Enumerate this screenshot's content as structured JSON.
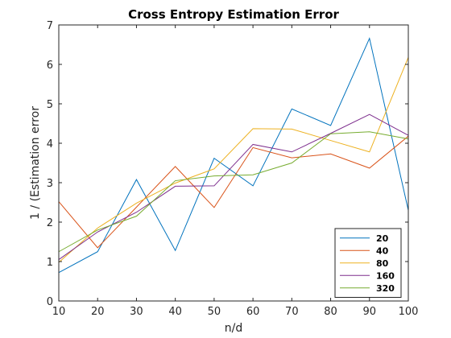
{
  "chart_data": {
    "type": "line",
    "title": "Cross Entropy Estimation Error",
    "xlabel": "n/d",
    "ylabel": "1 / (Estimation error",
    "x": [
      10,
      20,
      30,
      40,
      50,
      60,
      70,
      80,
      90,
      100
    ],
    "xlim": [
      10,
      100
    ],
    "ylim": [
      0,
      7
    ],
    "xticks": [
      "10",
      "20",
      "30",
      "40",
      "50",
      "60",
      "70",
      "80",
      "90",
      "100"
    ],
    "yticks": [
      "0",
      "1",
      "2",
      "3",
      "4",
      "5",
      "6",
      "7"
    ],
    "grid": false,
    "legend_position": "bottom-right",
    "series": [
      {
        "name": "20",
        "color": "#0072BD",
        "values": [
          0.72,
          1.25,
          3.08,
          1.28,
          3.62,
          2.92,
          4.87,
          4.45,
          6.66,
          2.3
        ]
      },
      {
        "name": "40",
        "color": "#D95319",
        "values": [
          2.52,
          1.35,
          2.38,
          3.41,
          2.37,
          3.89,
          3.63,
          3.73,
          3.37,
          4.18
        ]
      },
      {
        "name": "80",
        "color": "#EDB120",
        "values": [
          0.98,
          1.85,
          2.48,
          2.99,
          3.35,
          4.37,
          4.36,
          4.07,
          3.78,
          6.18
        ]
      },
      {
        "name": "160",
        "color": "#7E2F8E",
        "values": [
          1.05,
          1.75,
          2.25,
          2.91,
          2.92,
          3.97,
          3.78,
          4.25,
          4.73,
          4.2
        ]
      },
      {
        "name": "320",
        "color": "#77AC30",
        "values": [
          1.25,
          1.8,
          2.15,
          3.05,
          3.17,
          3.2,
          3.5,
          4.24,
          4.29,
          4.11
        ]
      }
    ]
  }
}
